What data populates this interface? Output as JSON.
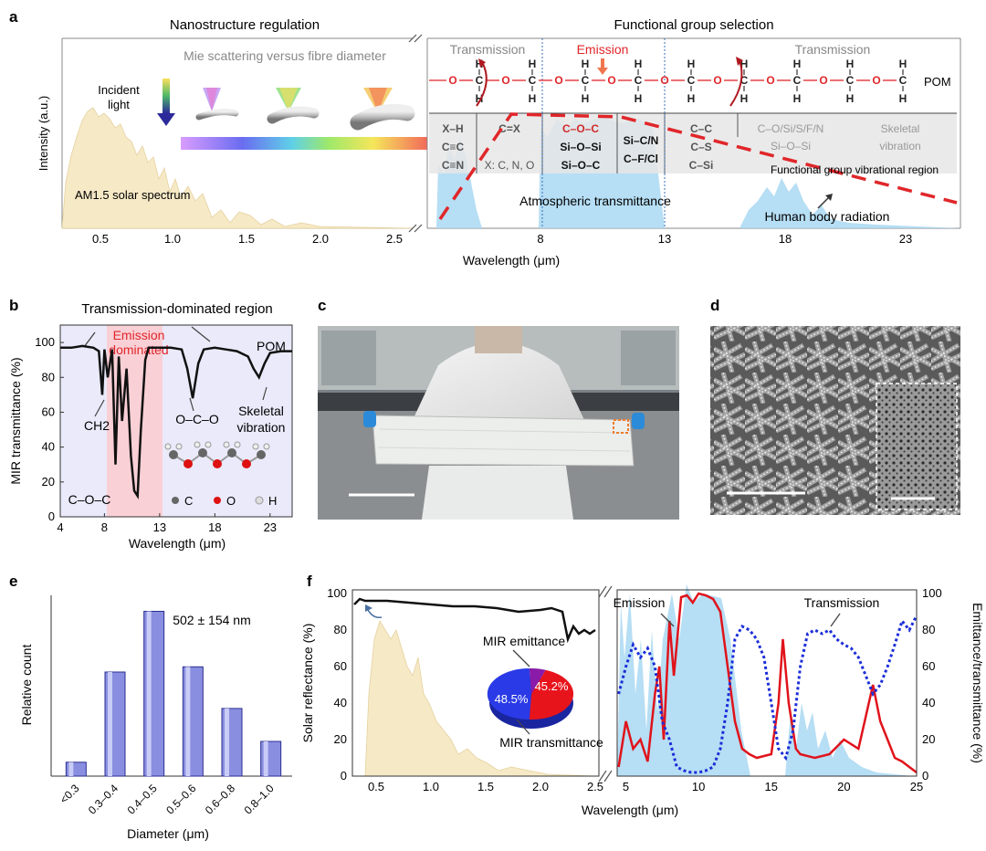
{
  "a": {
    "letter": "a",
    "titles": {
      "left": "Nanostructure regulation",
      "right": "Functional group selection"
    },
    "mie": "Mie scattering versus fibre diameter",
    "incident": [
      "Incident",
      "light"
    ],
    "ylabel": "Intensity (a.u.)",
    "xlabel": "Wavelength (μm)",
    "ticks_left": [
      "0.5",
      "1.0",
      "1.5",
      "2.0",
      "2.5"
    ],
    "ticks_right": [
      "8",
      "13",
      "18",
      "23"
    ],
    "solar": "AM1.5 solar spectrum",
    "transmission": "Transmission",
    "emission": "Emission",
    "pom": "POM",
    "groups": [
      "X–H",
      "C≡C",
      "C≡N",
      "C=X",
      "X: C, N, O",
      "C–O–C",
      "Si–O–Si",
      "Si–O–C",
      "Si–C/N",
      "C–F/Cl",
      "C–C",
      "C–S",
      "C–Si",
      "C–O/Si/S/F/N",
      "Si–O–Si",
      "Skeletal",
      "vibration"
    ],
    "fg_region": "Functional group vibrational region",
    "atm": "Atmospheric transmittance",
    "body": "Human body radiation"
  },
  "b": {
    "letter": "b",
    "title": "Transmission-dominated region",
    "emission": [
      "Emission",
      "dominated"
    ],
    "pom": "POM",
    "labels": [
      "CH2",
      "O–C–O",
      "Skeletal",
      "vibration",
      "C–O–C"
    ],
    "legend": [
      "C",
      "O",
      "H"
    ],
    "ylabel": "MIR transmittance (%)",
    "xlabel": "Wavelength (μm)",
    "yticks": [
      "0",
      "20",
      "40",
      "60",
      "80",
      "100"
    ],
    "xticks": [
      "4",
      "8",
      "13",
      "18",
      "23"
    ]
  },
  "c": {
    "letter": "c"
  },
  "d": {
    "letter": "d"
  },
  "e": {
    "letter": "e",
    "annotation": "502 ± 154 nm",
    "ylabel": "Relative count",
    "xlabel": "Diameter (μm)"
  },
  "f": {
    "letter": "f",
    "ylabel_left": "Solar reflectance (%)",
    "ylabel_right": "Emittance/transmittance (%)",
    "xlabel": "Wavelength (μm)",
    "yticks": [
      "0",
      "20",
      "40",
      "60",
      "80",
      "100"
    ],
    "xticks_left": [
      "0.5",
      "1.0",
      "1.5",
      "2.0",
      "2.5"
    ],
    "xticks_right": [
      "5",
      "10",
      "15",
      "20",
      "25"
    ],
    "pie_label_emit": "MIR emittance",
    "pie_label_trans": "MIR transmittance",
    "pie_emit": "45.2%",
    "pie_trans": "48.5%",
    "emission": "Emission",
    "transmission": "Transmission"
  },
  "chart_data": [
    {
      "type": "bar",
      "panel": "e",
      "categories": [
        "<0.3",
        "0.3–0.4",
        "0.4–0.5",
        "0.5–0.6",
        "0.6–0.8",
        "0.8–1.0"
      ],
      "values": [
        0.08,
        0.6,
        0.95,
        0.63,
        0.39,
        0.2
      ],
      "xlabel": "Diameter (μm)",
      "ylabel": "Relative count"
    },
    {
      "type": "line",
      "panel": "b",
      "x": [
        4,
        5,
        6,
        7,
        7.5,
        7.8,
        8,
        8.3,
        8.7,
        9,
        9.3,
        9.6,
        10,
        10.4,
        10.7,
        11,
        11.3,
        11.7,
        12,
        12.5,
        13,
        14,
        15,
        15.5,
        16,
        16.5,
        17,
        18,
        19,
        20,
        21,
        21.5,
        22,
        22.5,
        23,
        24,
        25
      ],
      "y": [
        97,
        97,
        98,
        97,
        95,
        70,
        96,
        80,
        96,
        30,
        92,
        55,
        85,
        35,
        15,
        12,
        50,
        90,
        97,
        97,
        97,
        97,
        96,
        85,
        68,
        88,
        96,
        97,
        96,
        95,
        92,
        85,
        80,
        88,
        94,
        95,
        95
      ],
      "xlabel": "Wavelength (μm)",
      "ylabel": "MIR transmittance (%)",
      "ylim": [
        0,
        110
      ]
    },
    {
      "type": "line",
      "panel": "f",
      "series": [
        {
          "name": "MIR emittance",
          "x": [
            4.5,
            5,
            5.5,
            6,
            6.5,
            7,
            7.3,
            7.6,
            8,
            8.3,
            8.8,
            9.2,
            9.6,
            10,
            10.5,
            11,
            11.5,
            12,
            12.5,
            13,
            13.5,
            14,
            15,
            15.5,
            15.8,
            16.2,
            16.7,
            17,
            18,
            19,
            20,
            21,
            22,
            22.5,
            23,
            23.5,
            24,
            24.5,
            25
          ],
          "y": [
            5,
            30,
            15,
            20,
            8,
            45,
            60,
            20,
            85,
            55,
            98,
            99,
            95,
            100,
            99,
            97,
            90,
            60,
            30,
            15,
            12,
            10,
            12,
            40,
            75,
            40,
            15,
            12,
            10,
            12,
            20,
            15,
            50,
            30,
            20,
            10,
            8,
            5,
            2
          ]
        },
        {
          "name": "MIR transmittance",
          "x": [
            4.5,
            5,
            5.5,
            6,
            6.5,
            7,
            7.5,
            8,
            8.5,
            9,
            9.5,
            10,
            10.5,
            11,
            11.5,
            12,
            12.5,
            13,
            13.5,
            14,
            14.5,
            15,
            15.5,
            16,
            16.5,
            17,
            17.5,
            18,
            18.5,
            19,
            19.5,
            20,
            20.5,
            21,
            21.5,
            22,
            22.5,
            23,
            23.5,
            24,
            24.5,
            25
          ],
          "y": [
            45,
            60,
            72,
            65,
            70,
            60,
            30,
            20,
            5,
            3,
            2,
            2,
            3,
            5,
            15,
            40,
            75,
            82,
            80,
            75,
            65,
            40,
            15,
            10,
            25,
            60,
            78,
            80,
            78,
            80,
            75,
            72,
            70,
            65,
            55,
            45,
            50,
            60,
            72,
            85,
            80,
            88
          ]
        }
      ],
      "xlabel": "Wavelength (μm)",
      "ylabel": "Emittance/transmittance (%)",
      "ylim": [
        0,
        100
      ]
    },
    {
      "type": "line",
      "panel": "f",
      "series": [
        {
          "name": "Solar reflectance",
          "x": [
            0.3,
            0.35,
            0.4,
            0.6,
            0.8,
            1.0,
            1.2,
            1.4,
            1.6,
            1.8,
            2.0,
            2.1,
            2.2,
            2.25,
            2.3,
            2.35,
            2.4,
            2.45,
            2.5
          ],
          "y": [
            94,
            97,
            96,
            96,
            95,
            94,
            93,
            93,
            92,
            90,
            91,
            92,
            90,
            75,
            82,
            78,
            80,
            78,
            80
          ]
        }
      ],
      "xlabel": "Wavelength (μm)",
      "ylabel": "Solar reflectance (%)",
      "ylim": [
        0,
        100
      ]
    },
    {
      "type": "pie",
      "panel": "f",
      "labels": [
        "MIR emittance",
        "MIR transmittance"
      ],
      "values": [
        45.2,
        48.5
      ]
    }
  ]
}
